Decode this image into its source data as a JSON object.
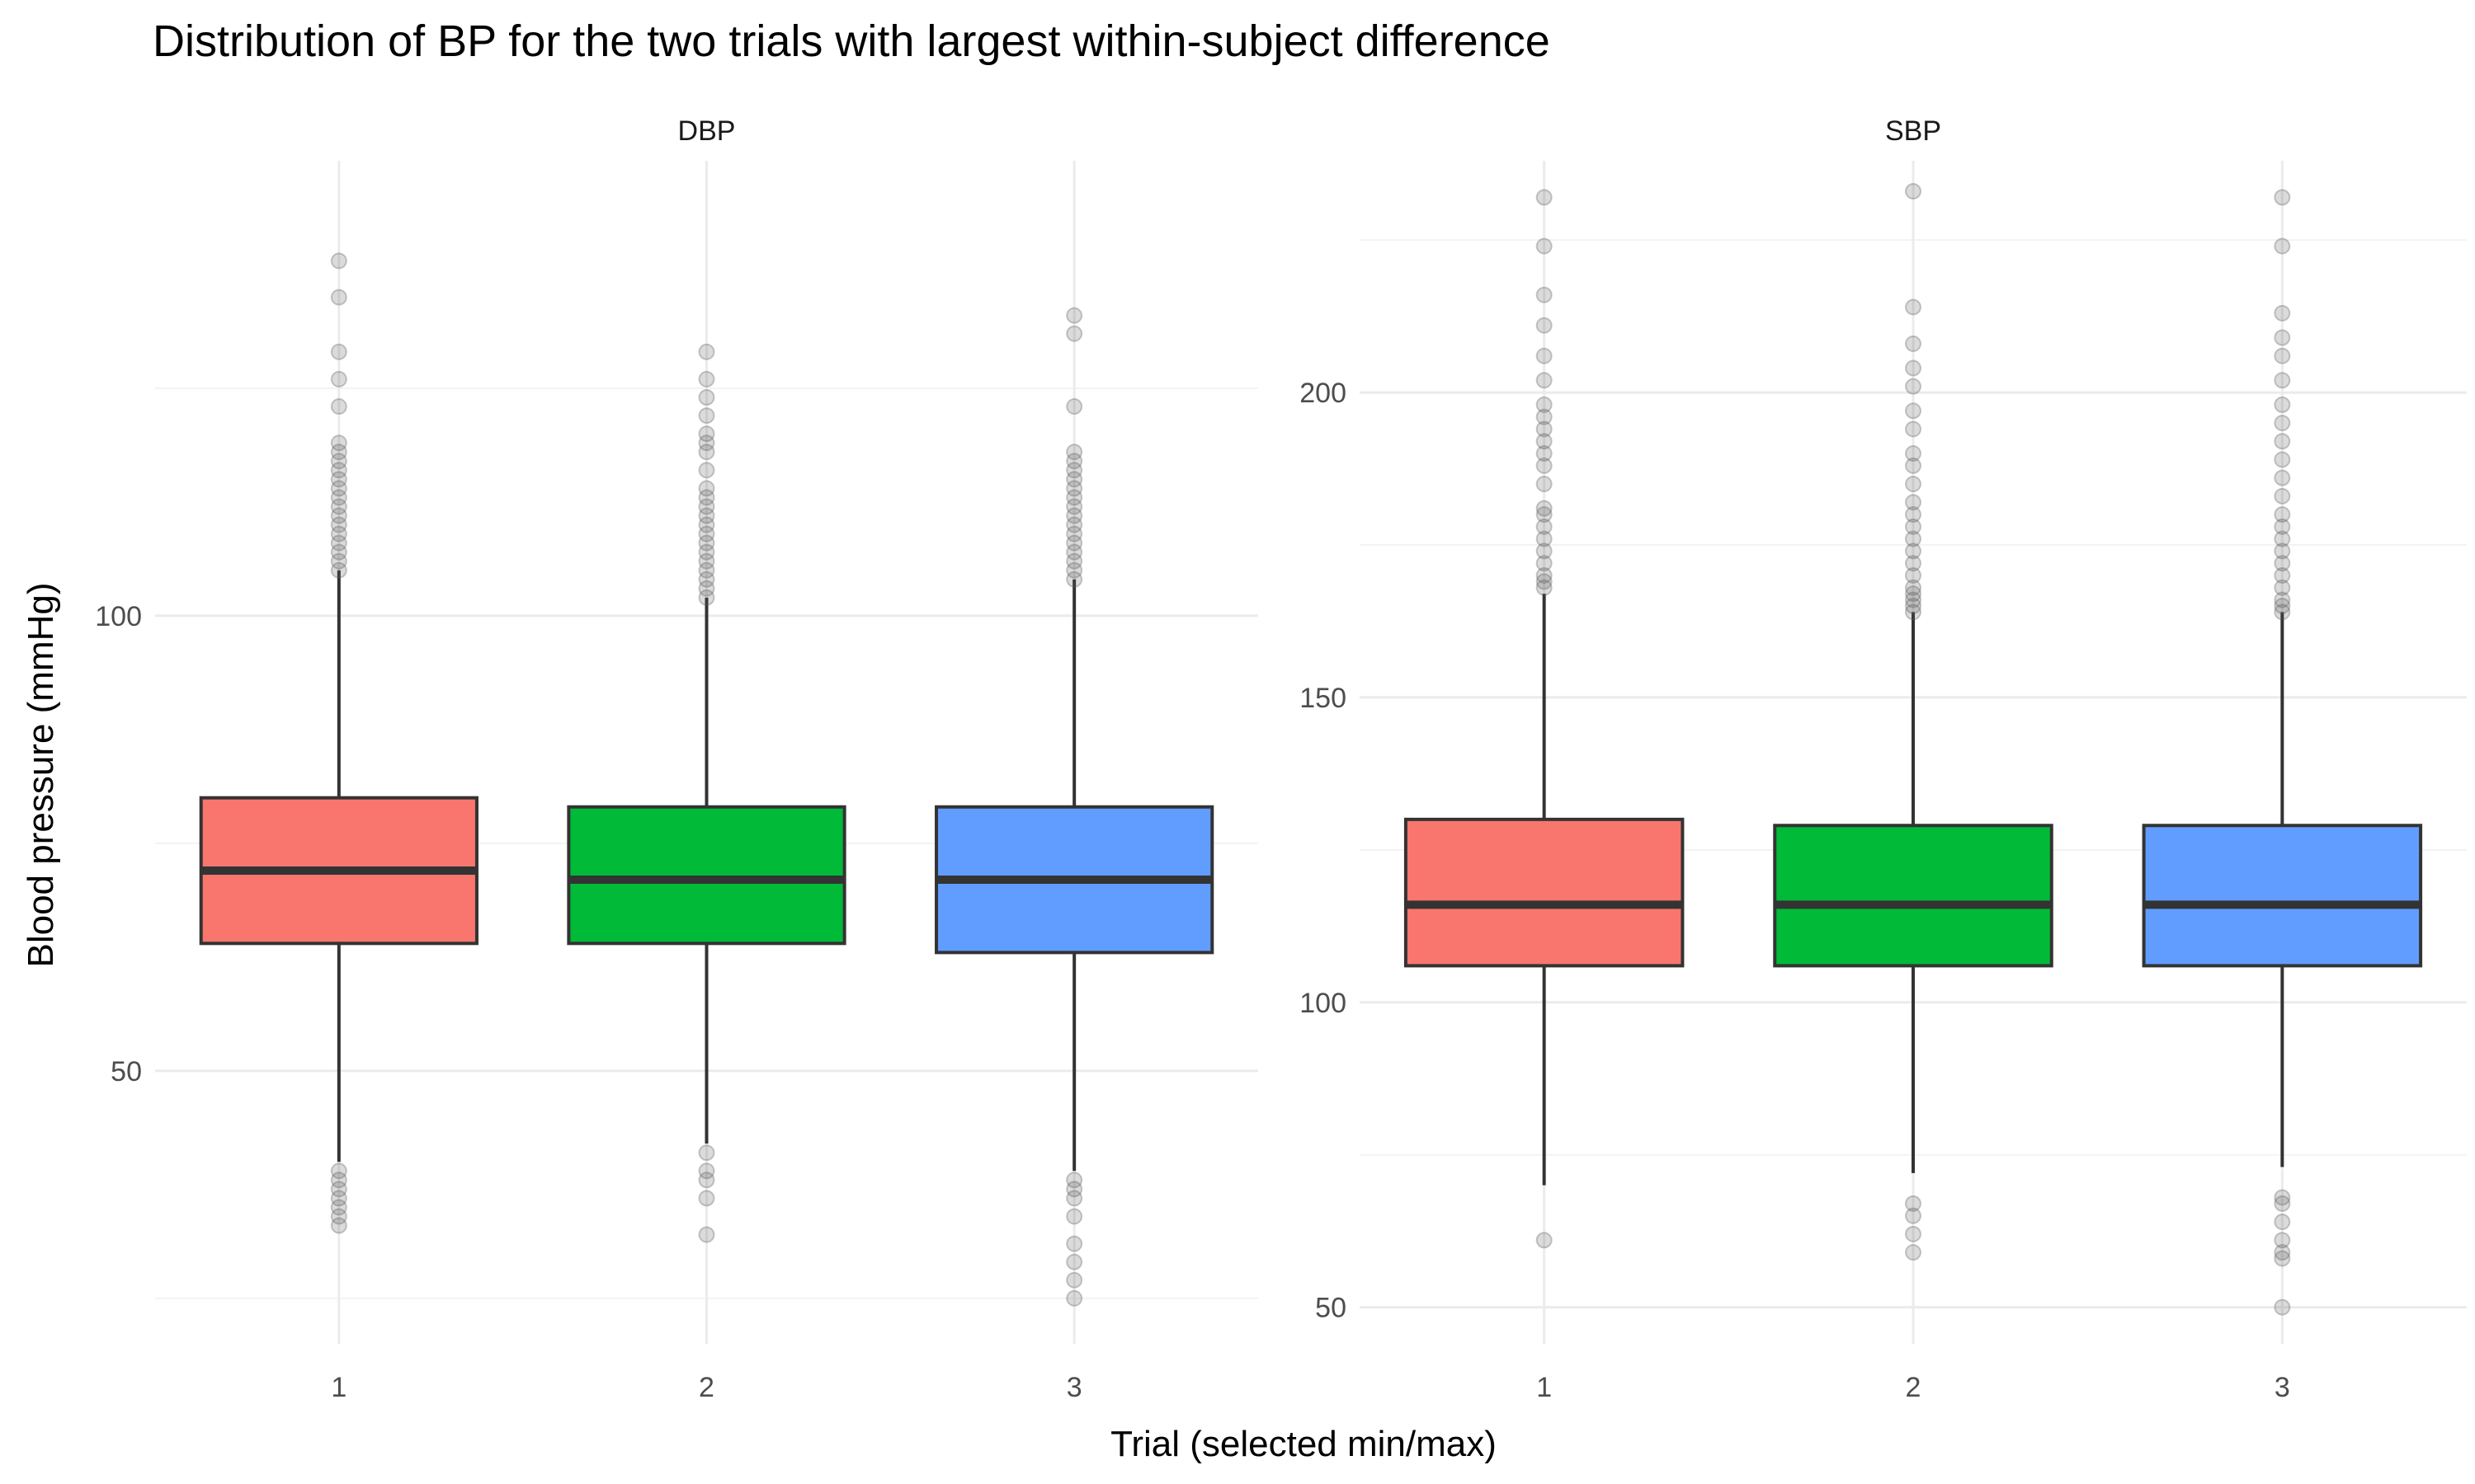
{
  "chart_data": {
    "type": "boxplot",
    "title": "Distribution of BP for the two trials with largest within-subject difference",
    "xlabel": "Trial (selected min/max)",
    "ylabel": "Blood pressure (mmHg)",
    "categories": [
      "1",
      "2",
      "3"
    ],
    "fill_colors": [
      "#F8766D",
      "#00BA38",
      "#619CFF"
    ],
    "panels": [
      {
        "strip": "DBP",
        "ylim": [
          20,
          150
        ],
        "yticks": [
          50,
          100
        ],
        "series": [
          {
            "category": "1",
            "q1": 64,
            "median": 72,
            "q3": 80,
            "whisker_low": 40,
            "whisker_high": 105,
            "outliers_high": [
              105,
              106,
              107,
              108,
              109,
              110,
              111,
              112,
              113,
              114,
              115,
              116,
              117,
              118,
              119,
              123,
              126,
              129,
              135,
              139
            ],
            "outliers_low": [
              39,
              38,
              37,
              36,
              35,
              34,
              33
            ]
          },
          {
            "category": "2",
            "q1": 64,
            "median": 71,
            "q3": 79,
            "whisker_low": 42,
            "whisker_high": 102,
            "outliers_high": [
              102,
              103,
              104,
              105,
              106,
              107,
              108,
              109,
              110,
              111,
              112,
              113,
              114,
              116,
              118,
              119,
              120,
              122,
              124,
              126,
              129
            ],
            "outliers_low": [
              41,
              39,
              38,
              36,
              32
            ]
          },
          {
            "category": "3",
            "q1": 63,
            "median": 71,
            "q3": 79,
            "whisker_low": 39,
            "whisker_high": 104,
            "outliers_high": [
              104,
              105,
              106,
              107,
              108,
              109,
              110,
              111,
              112,
              113,
              114,
              115,
              116,
              117,
              118,
              123,
              131,
              133
            ],
            "outliers_low": [
              38,
              37,
              36,
              34,
              31,
              29,
              27,
              25
            ]
          }
        ]
      },
      {
        "strip": "SBP",
        "ylim": [
          44,
          238
        ],
        "yticks": [
          50,
          100,
          150,
          200
        ],
        "series": [
          {
            "category": "1",
            "q1": 106,
            "median": 116,
            "q3": 130,
            "whisker_low": 70,
            "whisker_high": 167,
            "outliers_high": [
              168,
              169,
              170,
              172,
              174,
              176,
              178,
              180,
              181,
              185,
              188,
              190,
              192,
              194,
              196,
              198,
              202,
              206,
              211,
              216,
              224,
              232
            ],
            "outliers_low": [
              61
            ]
          },
          {
            "category": "2",
            "q1": 106,
            "median": 116,
            "q3": 129,
            "whisker_low": 72,
            "whisker_high": 164,
            "outliers_high": [
              164,
              165,
              166,
              167,
              168,
              170,
              172,
              174,
              176,
              178,
              180,
              182,
              185,
              188,
              190,
              194,
              197,
              201,
              204,
              208,
              214,
              233
            ],
            "outliers_low": [
              67,
              65,
              62,
              59
            ]
          },
          {
            "category": "3",
            "q1": 106,
            "median": 116,
            "q3": 129,
            "whisker_low": 73,
            "whisker_high": 164,
            "outliers_high": [
              164,
              165,
              166,
              168,
              170,
              172,
              174,
              176,
              178,
              180,
              183,
              186,
              189,
              192,
              195,
              198,
              202,
              206,
              209,
              213,
              224,
              232
            ],
            "outliers_low": [
              68,
              67,
              64,
              61,
              59,
              58,
              50
            ]
          }
        ]
      }
    ]
  }
}
